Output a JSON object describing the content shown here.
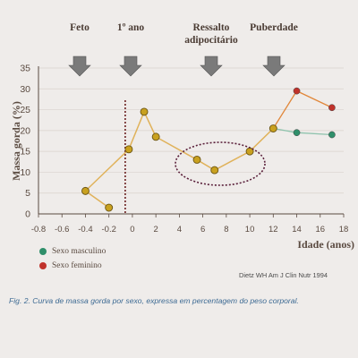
{
  "chart_data": {
    "type": "line",
    "ylabel": "Massa gorda (%)",
    "xlabel": "Idade (anos)",
    "xlim": [
      -0.8,
      18
    ],
    "ylim": [
      0,
      35
    ],
    "x_ticks": [
      "-0.8",
      "-0.6",
      "-0.4",
      "-0.2",
      "0",
      "2",
      "4",
      "6",
      "8",
      "10",
      "12",
      "14",
      "16",
      "18"
    ],
    "y_ticks": [
      0,
      5,
      10,
      15,
      20,
      25,
      30,
      35
    ],
    "grid": "horizontal",
    "common_series": {
      "x": [
        "-0.2",
        "-0.4",
        "0",
        "2",
        "4",
        "6",
        "8",
        "10",
        "12"
      ],
      "points": [
        {
          "x": "-0.2",
          "y": 1.5
        },
        {
          "x": "-0.4",
          "y": 5.5
        },
        {
          "x": "0-",
          "y": 15.5
        },
        {
          "x": "1",
          "y": 24.5
        },
        {
          "x": "2",
          "y": 18.5
        },
        {
          "x": "5.5",
          "y": 13
        },
        {
          "x": "7",
          "y": 10.5
        },
        {
          "x": "10",
          "y": 15
        },
        {
          "x": "12",
          "y": 20.5
        }
      ]
    },
    "series": [
      {
        "name": "Sexo masculino",
        "color": "#2f8f6a",
        "points": [
          {
            "x": 12,
            "y": 20.5
          },
          {
            "x": 14,
            "y": 19.5
          },
          {
            "x": 17,
            "y": 19
          }
        ]
      },
      {
        "name": "Sexo feminino",
        "color": "#c0322b",
        "points": [
          {
            "x": 12,
            "y": 20.5
          },
          {
            "x": 14,
            "y": 29.5
          },
          {
            "x": 17,
            "y": 25.5
          }
        ]
      }
    ],
    "stages": [
      {
        "label": "Feto",
        "at": "-0.4"
      },
      {
        "label": "1º ano",
        "at": "0"
      },
      {
        "label": "Ressalto adipocitário",
        "at": "8"
      },
      {
        "label": "Puberdade",
        "at": "12"
      }
    ]
  },
  "caption": "Fig. 2. Curva de massa gorda por sexo, expressa em percentagem do peso corporal.",
  "source": "Dietz WH Am J Clin Nutr 1994",
  "legend": {
    "male": "Sexo masculino",
    "female": "Sexo feminino"
  },
  "colors": {
    "line": "#e0b25a",
    "male": "#2f8f6a",
    "female": "#c0322b",
    "arrow": "#7a7a7a",
    "dot": "#c9a11f",
    "axis": "#5a4a40"
  }
}
